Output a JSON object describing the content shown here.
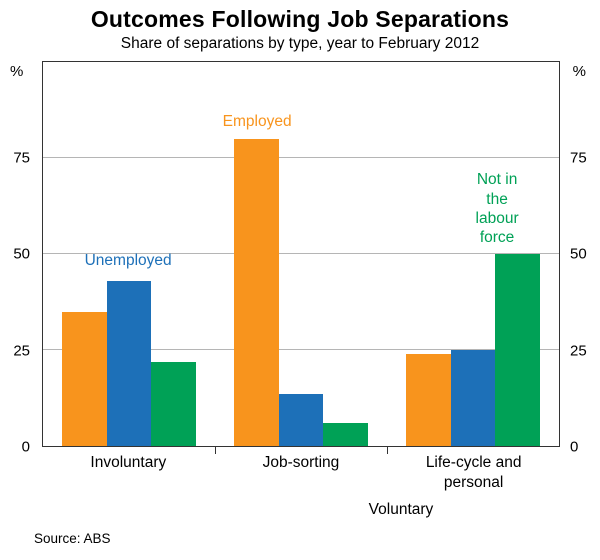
{
  "title": "Outcomes Following Job Separations",
  "subtitle": "Share of separations by type, year to February 2012",
  "source": "Source: ABS",
  "x_group_label": "Voluntary",
  "axis": {
    "unit_left": "%",
    "unit_right": "%",
    "ticks": [
      0,
      25,
      50,
      75
    ]
  },
  "chart_data": {
    "type": "bar",
    "title": "Outcomes Following Job Separations",
    "subtitle": "Share of separations by type, year to February 2012",
    "categories": [
      "Involuntary",
      "Job-sorting",
      "Life-cycle and\npersonal"
    ],
    "x_super_category": "Voluntary",
    "series": [
      {
        "name": "Employed",
        "color": "#F8941D",
        "values": [
          35,
          80,
          24
        ]
      },
      {
        "name": "Unemployed",
        "color": "#1D70B8",
        "values": [
          43,
          13.5,
          25
        ]
      },
      {
        "name": "Not in the labour force",
        "color": "#00A156",
        "values": [
          22,
          6,
          50
        ]
      }
    ],
    "ylim": [
      0,
      100
    ],
    "gridlines": [
      25,
      50,
      75
    ],
    "grid": true,
    "legend_position": "in-plot colored annotations",
    "annotations": [
      {
        "text": "Unemployed",
        "color": "#1D70B8"
      },
      {
        "text": "Employed",
        "color": "#F8941D"
      },
      {
        "text": "Not in the\nlabour force",
        "color": "#00A156"
      }
    ],
    "source": "Source: ABS"
  }
}
